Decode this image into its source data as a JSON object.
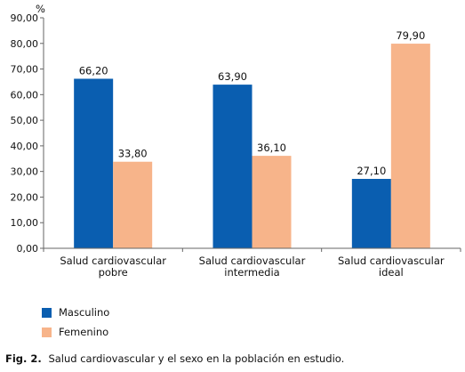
{
  "chart_data": {
    "type": "bar",
    "ylabel": "%",
    "ylim": [
      0,
      90
    ],
    "yticks": [
      "0,00",
      "10,00",
      "20,00",
      "30,00",
      "40,00",
      "50,00",
      "60,00",
      "70,00",
      "80,00",
      "90,00"
    ],
    "categories": [
      [
        "Salud cardiovascular",
        "pobre"
      ],
      [
        "Salud cardiovascular",
        "intermedia"
      ],
      [
        "Salud cardiovascular",
        "ideal"
      ]
    ],
    "series": [
      {
        "name": "Masculino",
        "color": "#0a5eb0",
        "values": [
          66.2,
          63.9,
          27.1
        ],
        "labels": [
          "66,20",
          "63,90",
          "27,10"
        ]
      },
      {
        "name": "Femenino",
        "color": "#f7b48a",
        "values": [
          33.8,
          36.1,
          79.9
        ],
        "labels": [
          "33,80",
          "36,10",
          "79,90"
        ]
      }
    ],
    "legend_position": "bottom-left",
    "grid": false
  },
  "caption": {
    "prefix": "Fig. 2.",
    "text": "Salud cardiovascular y el sexo en la población en estudio."
  }
}
